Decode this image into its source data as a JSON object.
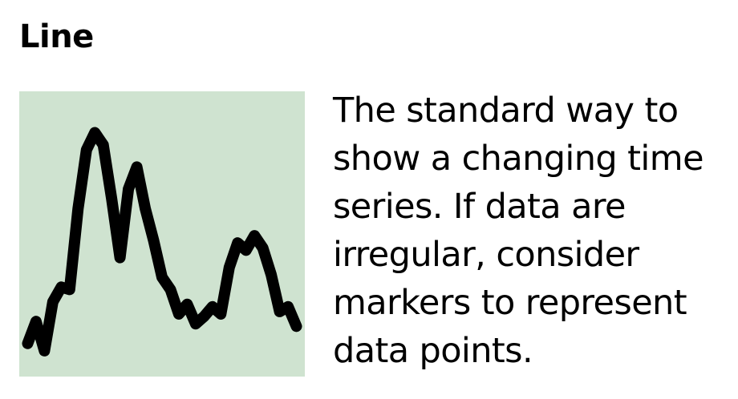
{
  "card": {
    "title": "Line",
    "description": "The standard way to show a changing time series. If data are irregular, consider markers to represent data points."
  },
  "colors": {
    "thumbnail_background": "#cfe3d0",
    "line": "#000000"
  },
  "chart_data": {
    "type": "line",
    "title": "",
    "xlabel": "",
    "ylabel": "",
    "grid": false,
    "x": [
      0,
      1,
      2,
      3,
      4,
      5,
      6,
      7,
      8,
      9,
      10,
      11,
      12,
      13,
      14,
      15,
      16,
      17,
      18,
      19,
      20,
      21,
      22,
      23,
      24,
      25,
      26,
      27,
      28,
      29,
      30,
      31,
      32
    ],
    "xlim": [
      -1,
      33
    ],
    "ylim": [
      0,
      100
    ],
    "series": [
      {
        "values": [
          5,
          14,
          2,
          22,
          28,
          27,
          60,
          84,
          91,
          86,
          64,
          40,
          68,
          77,
          60,
          47,
          32,
          27,
          17,
          21,
          13,
          16,
          20,
          17,
          36,
          46,
          43,
          49,
          44,
          33,
          18,
          20,
          12
        ]
      }
    ]
  }
}
